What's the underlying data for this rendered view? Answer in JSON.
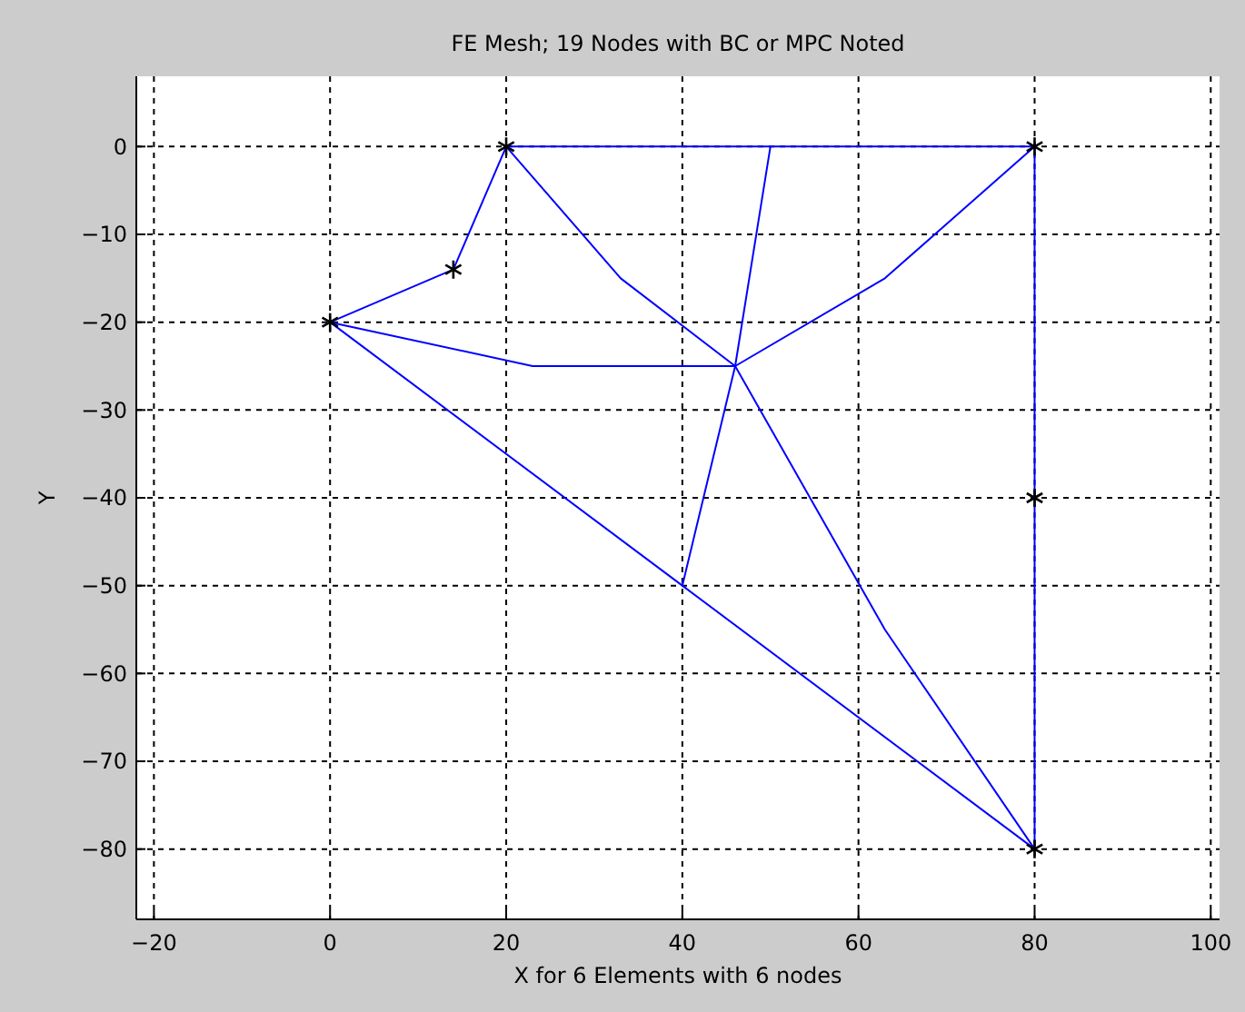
{
  "chart_data": {
    "type": "line",
    "title": "FE Mesh; 19 Nodes with BC or MPC Noted",
    "xlabel": "X for 6 Elements with 6 nodes",
    "ylabel": "Y",
    "xlim": [
      -22,
      101
    ],
    "ylim": [
      -88,
      8
    ],
    "xticks": [
      -20,
      0,
      20,
      40,
      60,
      80,
      100
    ],
    "yticks": [
      0,
      -10,
      -20,
      -30,
      -40,
      -50,
      -60,
      -70,
      -80
    ],
    "grid": true,
    "series": [
      {
        "color": "#0000ff",
        "x": [
          0,
          14,
          20,
          50,
          80,
          80,
          80
        ],
        "values": [
          -20,
          -14,
          0,
          0,
          0,
          -40,
          -80
        ]
      },
      {
        "color": "#0000ff",
        "x": [
          0,
          23,
          46,
          63,
          80
        ],
        "values": [
          -20,
          -25,
          -25,
          -15,
          0
        ]
      },
      {
        "color": "#0000ff",
        "x": [
          0,
          40,
          80
        ],
        "values": [
          -20,
          -50,
          -80
        ]
      },
      {
        "color": "#0000ff",
        "x": [
          20,
          33,
          46,
          63,
          80
        ],
        "values": [
          0,
          -15,
          -25,
          -55,
          -80
        ]
      },
      {
        "color": "#0000ff",
        "x": [
          40,
          43,
          46,
          48,
          50
        ],
        "values": [
          -50,
          -37.5,
          -25,
          -12.5,
          0
        ]
      },
      {
        "type": "scatter",
        "color": "#000000",
        "marker": "cross",
        "x": [
          0,
          14,
          20,
          80,
          80,
          80
        ],
        "values": [
          -20,
          -14,
          0,
          0,
          -40,
          -80
        ]
      }
    ]
  }
}
